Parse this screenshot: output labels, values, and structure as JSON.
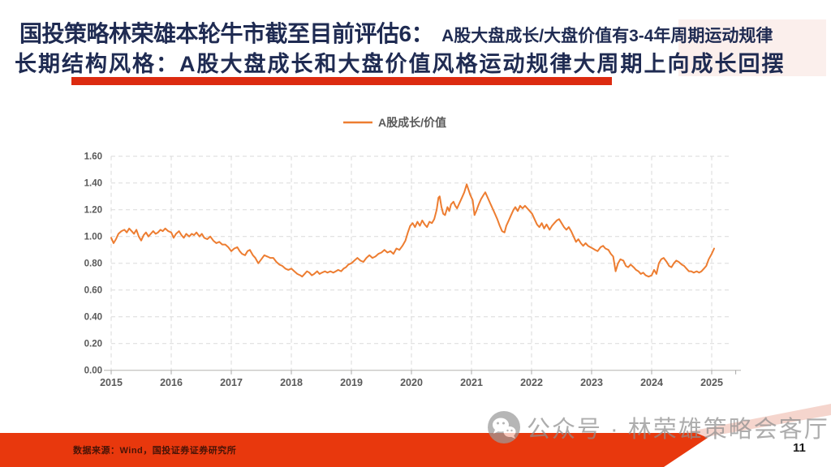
{
  "slide": {
    "title_line1_main": "国投策略林荣雄本轮牛市截至目前评估6：",
    "title_line1_sub": "A股大盘成长/大盘价值有3-4年周期运动规律",
    "title_line2": "长期结构风格：A股大盘成长和大盘价值风格运动规律大周期上向成长回摆",
    "footer_source": "数据来源：Wind，国投证券证券研究所",
    "watermark_text": "公众号 · 林荣雄策略会客厅",
    "page_number": "11"
  },
  "colors": {
    "title_navy": "#1F2B52",
    "accent_red": "#DC2B10",
    "footer_red": "#E8380D",
    "line_orange": "#ED7D31",
    "grid_gray": "#DADADA",
    "axis_label_gray": "#595959",
    "watermark_gray": "#8E8E8E",
    "source_text": "#471407",
    "page_number_color": "#1A1A1A",
    "pink_tint": "#F4CEC5"
  },
  "chart_data": {
    "type": "line",
    "title": "",
    "xlabel": "",
    "ylabel": "",
    "legend_position": "top-center",
    "grid": true,
    "ylim": [
      0,
      1.6
    ],
    "y_ticks": [
      "0.00",
      "0.20",
      "0.40",
      "0.60",
      "0.80",
      "1.00",
      "1.20",
      "1.40",
      "1.60"
    ],
    "x_ticks": [
      2015,
      2016,
      2017,
      2018,
      2019,
      2020,
      2021,
      2022,
      2023,
      2024,
      2025
    ],
    "x_range": [
      2015,
      2025.4
    ],
    "series": [
      {
        "name": "A股成长/价值",
        "color": "#ED7D31",
        "points": [
          [
            2015.0,
            0.99
          ],
          [
            2015.04,
            0.95
          ],
          [
            2015.08,
            0.98
          ],
          [
            2015.12,
            1.02
          ],
          [
            2015.17,
            1.04
          ],
          [
            2015.22,
            1.05
          ],
          [
            2015.26,
            1.03
          ],
          [
            2015.3,
            1.06
          ],
          [
            2015.34,
            1.04
          ],
          [
            2015.38,
            1.02
          ],
          [
            2015.42,
            1.05
          ],
          [
            2015.46,
            1.0
          ],
          [
            2015.5,
            0.97
          ],
          [
            2015.54,
            1.01
          ],
          [
            2015.58,
            1.03
          ],
          [
            2015.62,
            1.0
          ],
          [
            2015.66,
            1.02
          ],
          [
            2015.7,
            1.04
          ],
          [
            2015.74,
            1.02
          ],
          [
            2015.78,
            1.03
          ],
          [
            2015.82,
            1.05
          ],
          [
            2015.86,
            1.04
          ],
          [
            2015.9,
            1.06
          ],
          [
            2015.95,
            1.04
          ],
          [
            2016.0,
            1.03
          ],
          [
            2016.04,
            0.99
          ],
          [
            2016.08,
            1.02
          ],
          [
            2016.13,
            1.04
          ],
          [
            2016.17,
            1.01
          ],
          [
            2016.21,
            0.99
          ],
          [
            2016.25,
            1.02
          ],
          [
            2016.3,
            1.0
          ],
          [
            2016.34,
            1.02
          ],
          [
            2016.38,
            1.01
          ],
          [
            2016.42,
            1.03
          ],
          [
            2016.47,
            1.0
          ],
          [
            2016.51,
            1.02
          ],
          [
            2016.55,
            0.99
          ],
          [
            2016.6,
            0.98
          ],
          [
            2016.65,
            1.0
          ],
          [
            2016.7,
            0.97
          ],
          [
            2016.75,
            0.95
          ],
          [
            2016.8,
            0.96
          ],
          [
            2016.85,
            0.94
          ],
          [
            2016.9,
            0.94
          ],
          [
            2016.95,
            0.92
          ],
          [
            2017.0,
            0.89
          ],
          [
            2017.05,
            0.91
          ],
          [
            2017.1,
            0.92
          ],
          [
            2017.14,
            0.89
          ],
          [
            2017.18,
            0.87
          ],
          [
            2017.23,
            0.86
          ],
          [
            2017.27,
            0.89
          ],
          [
            2017.31,
            0.9
          ],
          [
            2017.36,
            0.86
          ],
          [
            2017.4,
            0.84
          ],
          [
            2017.45,
            0.8
          ],
          [
            2017.5,
            0.83
          ],
          [
            2017.55,
            0.86
          ],
          [
            2017.6,
            0.85
          ],
          [
            2017.65,
            0.84
          ],
          [
            2017.7,
            0.84
          ],
          [
            2017.75,
            0.81
          ],
          [
            2017.8,
            0.79
          ],
          [
            2017.85,
            0.78
          ],
          [
            2017.9,
            0.76
          ],
          [
            2017.95,
            0.75
          ],
          [
            2018.0,
            0.76
          ],
          [
            2018.05,
            0.74
          ],
          [
            2018.1,
            0.72
          ],
          [
            2018.15,
            0.71
          ],
          [
            2018.18,
            0.7
          ],
          [
            2018.22,
            0.72
          ],
          [
            2018.26,
            0.74
          ],
          [
            2018.3,
            0.73
          ],
          [
            2018.34,
            0.71
          ],
          [
            2018.38,
            0.72
          ],
          [
            2018.43,
            0.74
          ],
          [
            2018.47,
            0.72
          ],
          [
            2018.51,
            0.73
          ],
          [
            2018.56,
            0.74
          ],
          [
            2018.6,
            0.73
          ],
          [
            2018.65,
            0.74
          ],
          [
            2018.7,
            0.73
          ],
          [
            2018.74,
            0.74
          ],
          [
            2018.78,
            0.75
          ],
          [
            2018.83,
            0.74
          ],
          [
            2018.87,
            0.76
          ],
          [
            2018.91,
            0.77
          ],
          [
            2018.95,
            0.79
          ],
          [
            2019.0,
            0.8
          ],
          [
            2019.05,
            0.82
          ],
          [
            2019.1,
            0.84
          ],
          [
            2019.15,
            0.82
          ],
          [
            2019.2,
            0.81
          ],
          [
            2019.25,
            0.84
          ],
          [
            2019.3,
            0.86
          ],
          [
            2019.35,
            0.84
          ],
          [
            2019.4,
            0.85
          ],
          [
            2019.45,
            0.87
          ],
          [
            2019.5,
            0.88
          ],
          [
            2019.55,
            0.9
          ],
          [
            2019.6,
            0.88
          ],
          [
            2019.65,
            0.89
          ],
          [
            2019.7,
            0.87
          ],
          [
            2019.75,
            0.91
          ],
          [
            2019.8,
            0.9
          ],
          [
            2019.85,
            0.93
          ],
          [
            2019.9,
            0.97
          ],
          [
            2019.94,
            1.03
          ],
          [
            2019.98,
            1.08
          ],
          [
            2020.02,
            1.1
          ],
          [
            2020.06,
            1.07
          ],
          [
            2020.1,
            1.11
          ],
          [
            2020.14,
            1.08
          ],
          [
            2020.18,
            1.12
          ],
          [
            2020.22,
            1.09
          ],
          [
            2020.26,
            1.07
          ],
          [
            2020.3,
            1.11
          ],
          [
            2020.34,
            1.1
          ],
          [
            2020.38,
            1.13
          ],
          [
            2020.42,
            1.2
          ],
          [
            2020.45,
            1.29
          ],
          [
            2020.47,
            1.3
          ],
          [
            2020.5,
            1.22
          ],
          [
            2020.53,
            1.17
          ],
          [
            2020.56,
            1.16
          ],
          [
            2020.6,
            1.22
          ],
          [
            2020.63,
            1.19
          ],
          [
            2020.66,
            1.24
          ],
          [
            2020.7,
            1.26
          ],
          [
            2020.73,
            1.23
          ],
          [
            2020.76,
            1.21
          ],
          [
            2020.8,
            1.25
          ],
          [
            2020.84,
            1.29
          ],
          [
            2020.88,
            1.33
          ],
          [
            2020.92,
            1.39
          ],
          [
            2020.95,
            1.35
          ],
          [
            2020.98,
            1.31
          ],
          [
            2021.02,
            1.27
          ],
          [
            2021.05,
            1.16
          ],
          [
            2021.08,
            1.19
          ],
          [
            2021.12,
            1.24
          ],
          [
            2021.16,
            1.28
          ],
          [
            2021.2,
            1.31
          ],
          [
            2021.23,
            1.33
          ],
          [
            2021.27,
            1.29
          ],
          [
            2021.31,
            1.25
          ],
          [
            2021.35,
            1.21
          ],
          [
            2021.39,
            1.17
          ],
          [
            2021.43,
            1.13
          ],
          [
            2021.47,
            1.08
          ],
          [
            2021.51,
            1.04
          ],
          [
            2021.55,
            1.03
          ],
          [
            2021.58,
            1.08
          ],
          [
            2021.62,
            1.12
          ],
          [
            2021.66,
            1.16
          ],
          [
            2021.7,
            1.2
          ],
          [
            2021.73,
            1.22
          ],
          [
            2021.77,
            1.19
          ],
          [
            2021.81,
            1.23
          ],
          [
            2021.85,
            1.21
          ],
          [
            2021.89,
            1.23
          ],
          [
            2021.93,
            1.21
          ],
          [
            2021.97,
            1.19
          ],
          [
            2022.01,
            1.17
          ],
          [
            2022.05,
            1.13
          ],
          [
            2022.09,
            1.09
          ],
          [
            2022.13,
            1.07
          ],
          [
            2022.17,
            1.1
          ],
          [
            2022.21,
            1.06
          ],
          [
            2022.25,
            1.09
          ],
          [
            2022.3,
            1.05
          ],
          [
            2022.34,
            1.08
          ],
          [
            2022.38,
            1.1
          ],
          [
            2022.42,
            1.12
          ],
          [
            2022.46,
            1.13
          ],
          [
            2022.5,
            1.1
          ],
          [
            2022.54,
            1.07
          ],
          [
            2022.58,
            1.05
          ],
          [
            2022.62,
            1.07
          ],
          [
            2022.66,
            1.04
          ],
          [
            2022.7,
            1.0
          ],
          [
            2022.74,
            0.96
          ],
          [
            2022.78,
            0.98
          ],
          [
            2022.82,
            0.95
          ],
          [
            2022.86,
            0.93
          ],
          [
            2022.9,
            0.95
          ],
          [
            2022.94,
            0.93
          ],
          [
            2022.98,
            0.92
          ],
          [
            2023.02,
            0.91
          ],
          [
            2023.06,
            0.9
          ],
          [
            2023.1,
            0.89
          ],
          [
            2023.15,
            0.92
          ],
          [
            2023.19,
            0.93
          ],
          [
            2023.23,
            0.91
          ],
          [
            2023.28,
            0.9
          ],
          [
            2023.32,
            0.87
          ],
          [
            2023.36,
            0.85
          ],
          [
            2023.4,
            0.74
          ],
          [
            2023.44,
            0.8
          ],
          [
            2023.48,
            0.83
          ],
          [
            2023.53,
            0.82
          ],
          [
            2023.57,
            0.78
          ],
          [
            2023.61,
            0.77
          ],
          [
            2023.65,
            0.79
          ],
          [
            2023.7,
            0.77
          ],
          [
            2023.74,
            0.75
          ],
          [
            2023.78,
            0.74
          ],
          [
            2023.82,
            0.72
          ],
          [
            2023.86,
            0.73
          ],
          [
            2023.9,
            0.71
          ],
          [
            2023.95,
            0.7
          ],
          [
            2024.0,
            0.71
          ],
          [
            2024.04,
            0.75
          ],
          [
            2024.08,
            0.72
          ],
          [
            2024.12,
            0.8
          ],
          [
            2024.16,
            0.83
          ],
          [
            2024.2,
            0.84
          ],
          [
            2024.25,
            0.81
          ],
          [
            2024.29,
            0.78
          ],
          [
            2024.33,
            0.77
          ],
          [
            2024.37,
            0.8
          ],
          [
            2024.41,
            0.82
          ],
          [
            2024.45,
            0.81
          ],
          [
            2024.5,
            0.79
          ],
          [
            2024.54,
            0.78
          ],
          [
            2024.58,
            0.76
          ],
          [
            2024.62,
            0.74
          ],
          [
            2024.66,
            0.74
          ],
          [
            2024.7,
            0.73
          ],
          [
            2024.75,
            0.74
          ],
          [
            2024.79,
            0.73
          ],
          [
            2024.83,
            0.74
          ],
          [
            2024.87,
            0.76
          ],
          [
            2024.91,
            0.78
          ],
          [
            2024.95,
            0.83
          ],
          [
            2025.0,
            0.87
          ],
          [
            2025.04,
            0.91
          ]
        ]
      }
    ]
  }
}
